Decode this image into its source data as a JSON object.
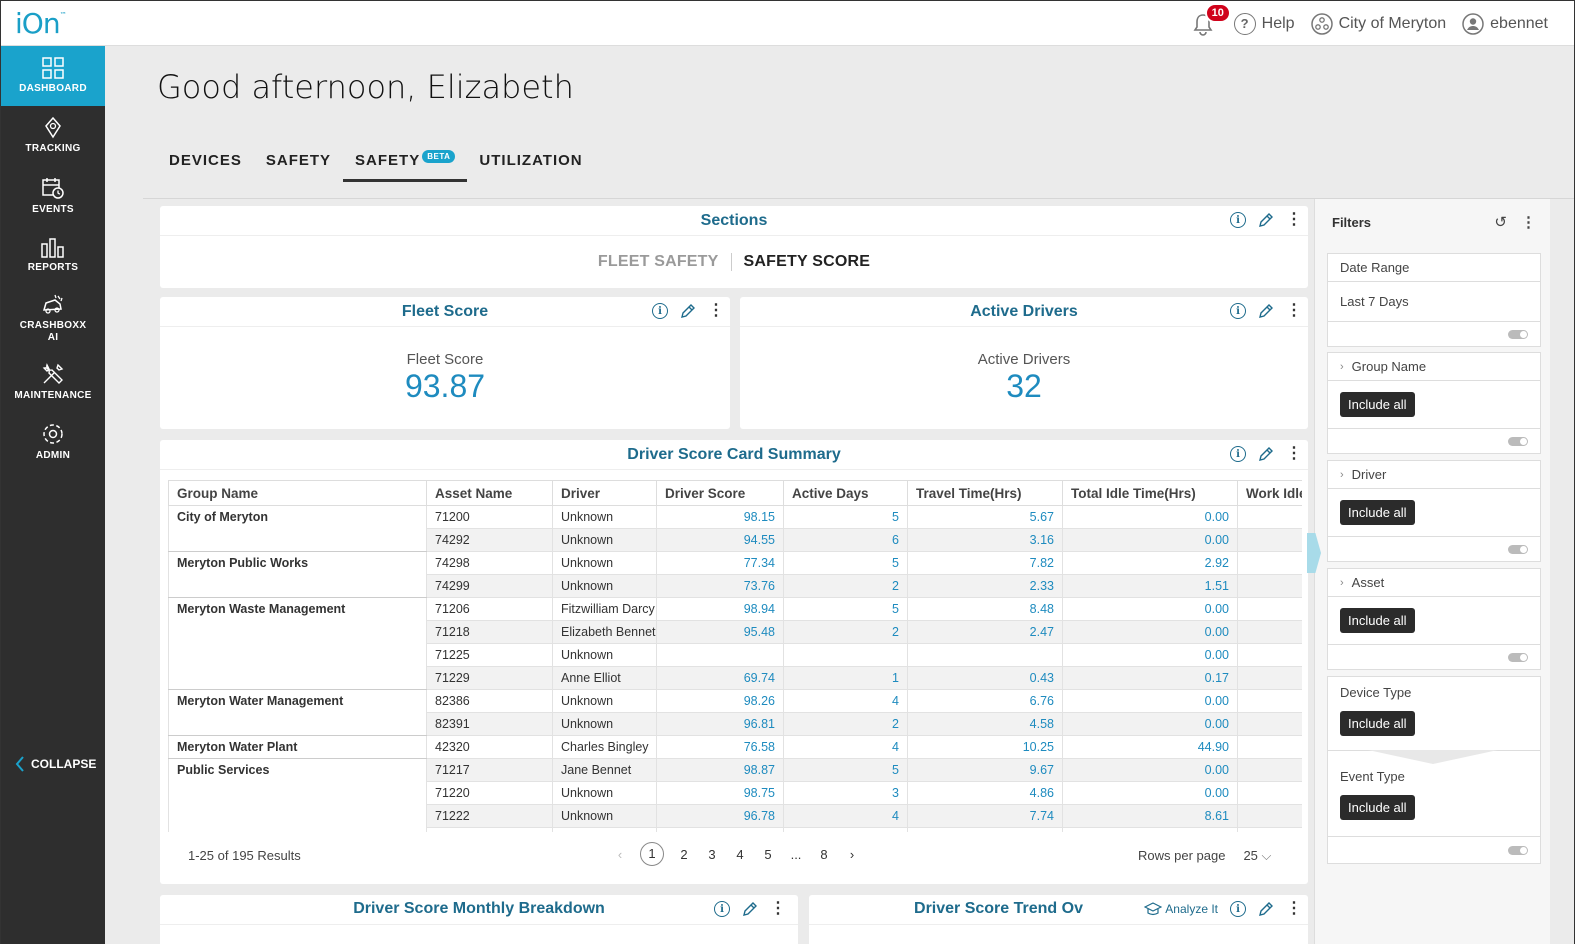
{
  "app": {
    "logo": "iOn",
    "logo_mark": "™"
  },
  "topbar": {
    "notifications": "10",
    "help": "Help",
    "org": "City of Meryton",
    "user": "ebennet"
  },
  "sidebar": {
    "items": [
      {
        "label": "DASHBOARD",
        "icon": "dashboard-icon"
      },
      {
        "label": "TRACKING",
        "icon": "location-pin-icon"
      },
      {
        "label": "EVENTS",
        "icon": "calendar-clock-icon"
      },
      {
        "label": "REPORTS",
        "icon": "bar-chart-icon"
      },
      {
        "label_line1": "CRASHBOXX",
        "label_line2": "AI",
        "icon": "crash-car-icon"
      },
      {
        "label": "MAINTENANCE",
        "icon": "tools-icon"
      },
      {
        "label": "ADMIN",
        "icon": "gear-icon"
      }
    ],
    "collapse": "COLLAPSE"
  },
  "greeting": "Good afternoon, Elizabeth",
  "tabs": [
    {
      "label": "DEVICES"
    },
    {
      "label": "SAFETY"
    },
    {
      "label": "SAFETY",
      "badge": "BETA"
    },
    {
      "label": "UTILIZATION"
    }
  ],
  "sections": {
    "title": "Sections",
    "links": [
      "FLEET SAFETY",
      "SAFETY SCORE"
    ]
  },
  "fleet_score": {
    "title": "Fleet Score",
    "label": "Fleet Score",
    "value": "93.87"
  },
  "active_drivers": {
    "title": "Active Drivers",
    "label": "Active Drivers",
    "value": "32"
  },
  "scorecard": {
    "title": "Driver Score Card Summary",
    "columns": [
      "Group Name",
      "Asset Name",
      "Driver",
      "Driver Score",
      "Active Days",
      "Travel Time(Hrs)",
      "Total Idle Time(Hrs)",
      "Work Idle"
    ],
    "rows": [
      {
        "group": "City of Meryton",
        "asset": "71200",
        "driver": "Unknown",
        "score": "98.15",
        "days": "5",
        "travel": "5.67",
        "idle": "0.00"
      },
      {
        "group": "",
        "asset": "74292",
        "driver": "Unknown",
        "score": "94.55",
        "days": "6",
        "travel": "3.16",
        "idle": "0.00"
      },
      {
        "group": "Meryton Public Works",
        "asset": "74298",
        "driver": "Unknown",
        "score": "77.34",
        "days": "5",
        "travel": "7.82",
        "idle": "2.92"
      },
      {
        "group": "",
        "asset": "74299",
        "driver": "Unknown",
        "score": "73.76",
        "days": "2",
        "travel": "2.33",
        "idle": "1.51"
      },
      {
        "group": "Meryton Waste Management",
        "asset": "71206",
        "driver": "Fitzwilliam Darcy",
        "score": "98.94",
        "days": "5",
        "travel": "8.48",
        "idle": "0.00"
      },
      {
        "group": "",
        "asset": "71218",
        "driver": "Elizabeth Bennet",
        "score": "95.48",
        "days": "2",
        "travel": "2.47",
        "idle": "0.00"
      },
      {
        "group": "",
        "asset": "71225",
        "driver": "Unknown",
        "score": "",
        "days": "",
        "travel": "",
        "idle": "0.00"
      },
      {
        "group": "",
        "asset": "71229",
        "driver": "Anne Elliot",
        "score": "69.74",
        "days": "1",
        "travel": "0.43",
        "idle": "0.17"
      },
      {
        "group": "Meryton Water Management",
        "asset": "82386",
        "driver": "Unknown",
        "score": "98.26",
        "days": "4",
        "travel": "6.76",
        "idle": "0.00"
      },
      {
        "group": "",
        "asset": "82391",
        "driver": "Unknown",
        "score": "96.81",
        "days": "2",
        "travel": "4.58",
        "idle": "0.00"
      },
      {
        "group": "Meryton Water Plant",
        "asset": "42320",
        "driver": "Charles Bingley",
        "score": "76.58",
        "days": "4",
        "travel": "10.25",
        "idle": "44.90"
      },
      {
        "group": "Public Services",
        "asset": "71217",
        "driver": "Jane Bennet",
        "score": "98.87",
        "days": "5",
        "travel": "9.67",
        "idle": "0.00"
      },
      {
        "group": "",
        "asset": "71220",
        "driver": "Unknown",
        "score": "98.75",
        "days": "3",
        "travel": "4.86",
        "idle": "0.00"
      },
      {
        "group": "",
        "asset": "71222",
        "driver": "Unknown",
        "score": "96.78",
        "days": "4",
        "travel": "7.74",
        "idle": "8.61"
      }
    ],
    "results": "1-25 of 195 Results",
    "pages": [
      "1",
      "2",
      "3",
      "4",
      "5",
      "...",
      "8"
    ],
    "rows_per_page_label": "Rows per page",
    "rows_per_page": "25"
  },
  "bottom_cards": {
    "monthly": "Driver Score Monthly Breakdown",
    "trend": "Driver Score Trend Ov",
    "analyze": "Analyze It"
  },
  "filters": {
    "title": "Filters",
    "date_range_label": "Date Range",
    "date_range_value": "Last 7 Days",
    "group_name": "Group Name",
    "driver": "Driver",
    "asset": "Asset",
    "device_type": "Device Type",
    "event_type": "Event Type",
    "include_all": "Include all"
  },
  "colors": {
    "accent": "#1aa3cc",
    "title_blue": "#1e6b8c",
    "value_blue": "#1e8bbf",
    "sidebar": "#2e2e2e"
  }
}
